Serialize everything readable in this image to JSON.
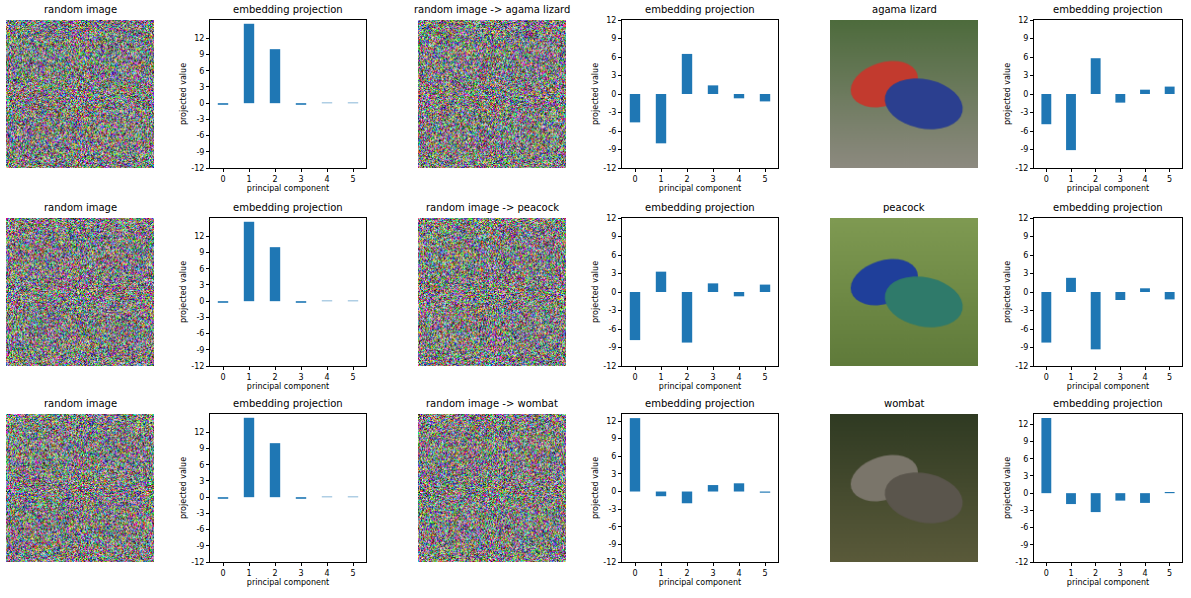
{
  "chart_data": [
    {
      "type": "bar",
      "title": "embedding projection",
      "x_label": "principal component",
      "y_label": "projected value",
      "x": [
        0,
        1,
        2,
        3,
        4,
        5
      ],
      "values": [
        -0.3,
        14.7,
        10.0,
        -0.3,
        0.1,
        0.1
      ],
      "color": "#1f77b4",
      "xlim": [
        -0.5,
        5.5
      ],
      "xticks": [
        0,
        1,
        2,
        3,
        4,
        5
      ],
      "ylim": [
        -12,
        15.4
      ],
      "yticks": [
        -12,
        -9,
        -6,
        -3,
        0,
        3,
        6,
        9,
        12
      ],
      "grid": false
    },
    {
      "type": "bar",
      "title": "embedding projection",
      "x_label": "principal component",
      "y_label": "projected value",
      "x": [
        0,
        1,
        2,
        3,
        4,
        5
      ],
      "values": [
        -4.6,
        -8.0,
        6.5,
        1.4,
        -0.7,
        -1.2
      ],
      "color": "#1f77b4",
      "xlim": [
        -0.5,
        5.5
      ],
      "xticks": [
        0,
        1,
        2,
        3,
        4,
        5
      ],
      "ylim": [
        -12,
        12
      ],
      "yticks": [
        -12,
        -9,
        -6,
        -3,
        0,
        3,
        6,
        9,
        12
      ],
      "grid": false
    },
    {
      "type": "bar",
      "title": "embedding projection",
      "x_label": "principal component",
      "y_label": "projected value",
      "x": [
        0,
        1,
        2,
        3,
        4,
        5
      ],
      "values": [
        -4.9,
        -9.1,
        5.8,
        -1.4,
        0.7,
        1.2
      ],
      "color": "#1f77b4",
      "xlim": [
        -0.5,
        5.5
      ],
      "xticks": [
        0,
        1,
        2,
        3,
        4,
        5
      ],
      "ylim": [
        -12,
        12
      ],
      "yticks": [
        -12,
        -9,
        -6,
        -3,
        0,
        3,
        6,
        9,
        12
      ],
      "grid": false
    },
    {
      "type": "bar",
      "title": "embedding projection",
      "x_label": "principal component",
      "y_label": "projected value",
      "x": [
        0,
        1,
        2,
        3,
        4,
        5
      ],
      "values": [
        -0.3,
        14.7,
        10.0,
        -0.3,
        0.1,
        0.1
      ],
      "color": "#1f77b4",
      "xlim": [
        -0.5,
        5.5
      ],
      "xticks": [
        0,
        1,
        2,
        3,
        4,
        5
      ],
      "ylim": [
        -12,
        15.4
      ],
      "yticks": [
        -12,
        -9,
        -6,
        -3,
        0,
        3,
        6,
        9,
        12
      ],
      "grid": false
    },
    {
      "type": "bar",
      "title": "embedding projection",
      "x_label": "principal component",
      "y_label": "projected value",
      "x": [
        0,
        1,
        2,
        3,
        4,
        5
      ],
      "values": [
        -7.8,
        3.3,
        -8.2,
        1.4,
        -0.7,
        1.2
      ],
      "color": "#1f77b4",
      "xlim": [
        -0.5,
        5.5
      ],
      "xticks": [
        0,
        1,
        2,
        3,
        4,
        5
      ],
      "ylim": [
        -12,
        12
      ],
      "yticks": [
        -12,
        -9,
        -6,
        -3,
        0,
        3,
        6,
        9,
        12
      ],
      "grid": false
    },
    {
      "type": "bar",
      "title": "embedding projection",
      "x_label": "principal component",
      "y_label": "projected value",
      "x": [
        0,
        1,
        2,
        3,
        4,
        5
      ],
      "values": [
        -8.2,
        2.3,
        -9.3,
        -1.3,
        0.6,
        -1.2
      ],
      "color": "#1f77b4",
      "xlim": [
        -0.5,
        5.5
      ],
      "xticks": [
        0,
        1,
        2,
        3,
        4,
        5
      ],
      "ylim": [
        -12,
        12
      ],
      "yticks": [
        -12,
        -9,
        -6,
        -3,
        0,
        3,
        6,
        9,
        12
      ],
      "grid": false
    },
    {
      "type": "bar",
      "title": "embedding projection",
      "x_label": "principal component",
      "y_label": "projected value",
      "x": [
        0,
        1,
        2,
        3,
        4,
        5
      ],
      "values": [
        -0.3,
        14.7,
        10.0,
        -0.3,
        0.1,
        0.1
      ],
      "color": "#1f77b4",
      "xlim": [
        -0.5,
        5.5
      ],
      "xticks": [
        0,
        1,
        2,
        3,
        4,
        5
      ],
      "ylim": [
        -12,
        15.4
      ],
      "yticks": [
        -12,
        -9,
        -6,
        -3,
        0,
        3,
        6,
        9,
        12
      ],
      "grid": false
    },
    {
      "type": "bar",
      "title": "embedding projection",
      "x_label": "principal component",
      "y_label": "projected value",
      "x": [
        0,
        1,
        2,
        3,
        4,
        5
      ],
      "values": [
        12.5,
        -0.8,
        -2.0,
        1.1,
        1.4,
        -0.2
      ],
      "color": "#1f77b4",
      "xlim": [
        -0.5,
        5.5
      ],
      "xticks": [
        0,
        1,
        2,
        3,
        4,
        5
      ],
      "ylim": [
        -12,
        13.2
      ],
      "yticks": [
        -12,
        -9,
        -6,
        -3,
        0,
        3,
        6,
        9,
        12
      ],
      "grid": false
    },
    {
      "type": "bar",
      "title": "embedding projection",
      "x_label": "principal component",
      "y_label": "projected value",
      "x": [
        0,
        1,
        2,
        3,
        4,
        5
      ],
      "values": [
        13.1,
        -1.9,
        -3.3,
        -1.3,
        -1.7,
        0.2
      ],
      "color": "#1f77b4",
      "xlim": [
        -0.5,
        5.5
      ],
      "xticks": [
        0,
        1,
        2,
        3,
        4,
        5
      ],
      "ylim": [
        -12,
        13.8
      ],
      "yticks": [
        -12,
        -9,
        -6,
        -3,
        0,
        3,
        6,
        9,
        12
      ],
      "grid": false
    }
  ],
  "images": [
    {
      "title": "random image"
    },
    {
      "title": "random image -> agama lizard"
    },
    {
      "title": "agama lizard"
    },
    {
      "title": "random image"
    },
    {
      "title": "random image -> peacock"
    },
    {
      "title": "peacock"
    },
    {
      "title": "random image"
    },
    {
      "title": "random image -> wombat"
    },
    {
      "title": "wombat"
    }
  ]
}
